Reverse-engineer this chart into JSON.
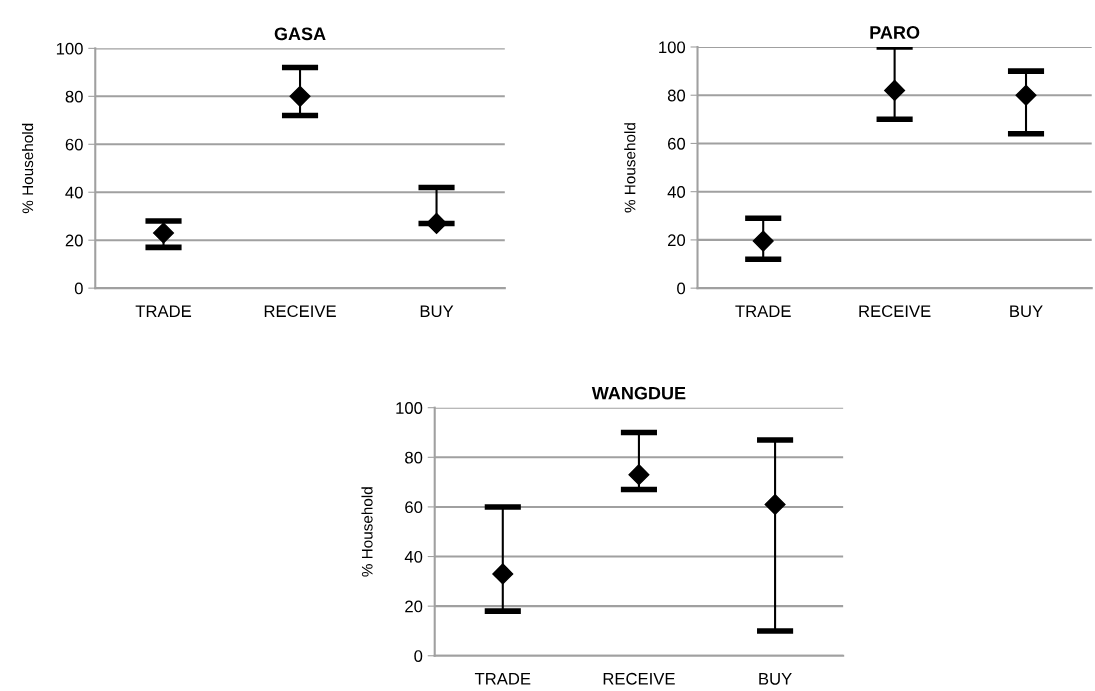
{
  "chart_data": [
    {
      "type": "scatter",
      "title": "GASA",
      "ylabel": "% Household",
      "categories": [
        "TRADE",
        "RECEIVE",
        "BUY"
      ],
      "series": [
        {
          "color": "#000000",
          "values": [
            23,
            80,
            27
          ],
          "errors": [
            [
              17,
              28
            ],
            [
              72,
              92
            ],
            [
              27,
              42
            ]
          ]
        }
      ],
      "ylim": [
        0,
        100
      ],
      "yticks": [
        0,
        20,
        40,
        60,
        80,
        100
      ],
      "grid": "y",
      "marker": "diamond",
      "legend": false
    },
    {
      "type": "scatter",
      "title": "PARO",
      "ylabel": "% Household",
      "categories": [
        "TRADE",
        "RECEIVE",
        "BUY"
      ],
      "series": [
        {
          "color": "#000000",
          "values": [
            19.5,
            82,
            80
          ],
          "errors": [
            [
              12,
              29
            ],
            [
              70,
              100
            ],
            [
              64,
              90
            ]
          ]
        }
      ],
      "ylim": [
        0,
        100
      ],
      "yticks": [
        0,
        20,
        40,
        60,
        80,
        100
      ],
      "grid": "y",
      "marker": "diamond",
      "legend": false
    },
    {
      "type": "scatter",
      "title": "WANGDUE",
      "ylabel": "% Household",
      "categories": [
        "TRADE",
        "RECEIVE",
        "BUY"
      ],
      "series": [
        {
          "color": "#000000",
          "values": [
            33,
            73,
            61
          ],
          "errors": [
            [
              18,
              60
            ],
            [
              67,
              90
            ],
            [
              10,
              87
            ]
          ]
        }
      ],
      "ylim": [
        0,
        100
      ],
      "yticks": [
        0,
        20,
        40,
        60,
        80,
        100
      ],
      "grid": "y",
      "marker": "diamond",
      "legend": false
    }
  ]
}
